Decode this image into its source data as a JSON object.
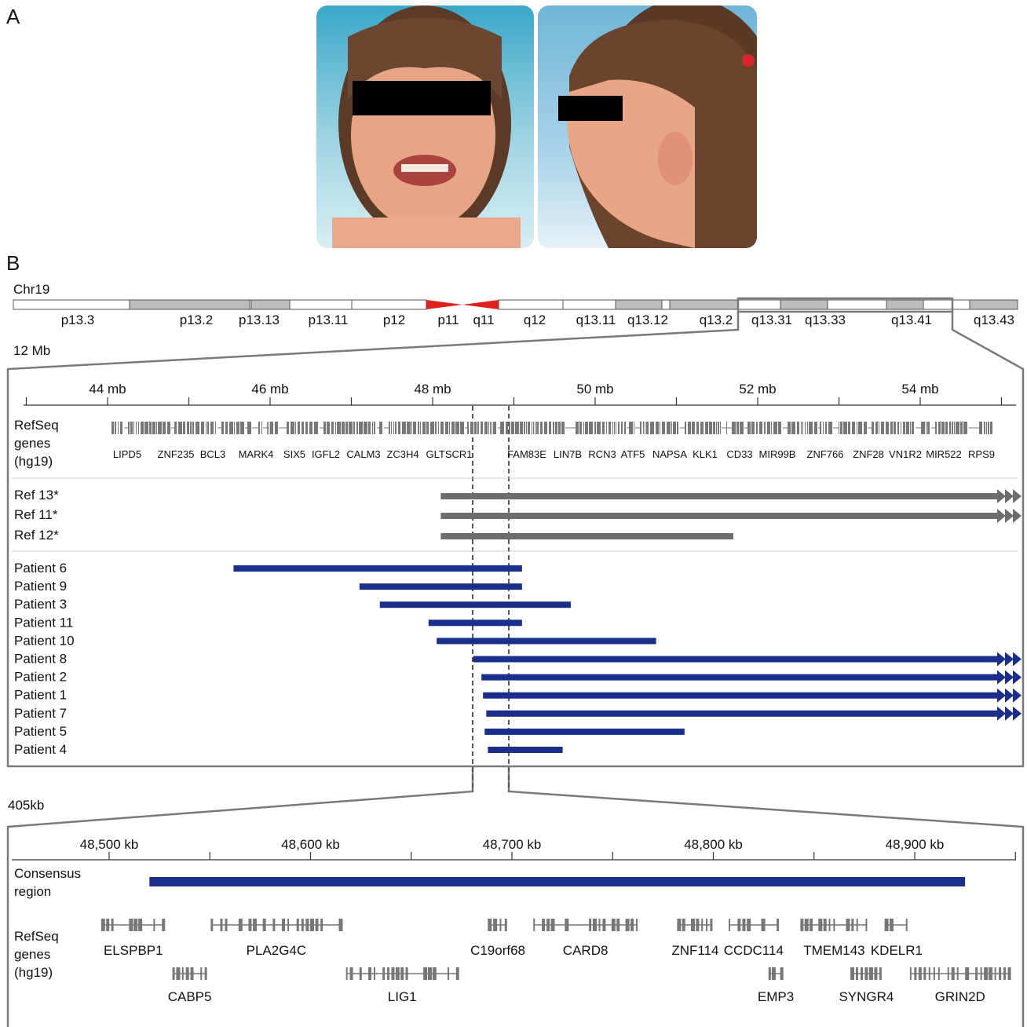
{
  "panel_a": {
    "label": "A"
  },
  "panel_b": {
    "label": "B"
  },
  "chromosome": {
    "name": "Chr19",
    "bands": [
      "p13.3",
      "p13.2",
      "p13.13",
      "p13.11",
      "p12",
      "p11",
      "q11",
      "q12",
      "q13.11",
      "q13.12",
      "q13.2",
      "q13.31",
      "q13.33",
      "q13.41",
      "q13.43"
    ]
  },
  "zoom1": {
    "size_label": "12 Mb",
    "axis_ticks": [
      "44 mb",
      "46 mb",
      "48 mb",
      "50 mb",
      "52 mb",
      "54 mb"
    ],
    "refseq_label": [
      "RefSeq",
      "genes",
      "(hg19)"
    ],
    "genes": [
      "LIPD5",
      "ZNF235",
      "BCL3",
      "MARK4",
      "SIX5",
      "IGFL2",
      "CALM3",
      "ZC3H4",
      "GLTSCR1",
      "FAM83E",
      "LIN7B",
      "RCN3",
      "ATF5",
      "NAPSA",
      "KLK1",
      "CD33",
      "MIR99B",
      "ZNF766",
      "ZNF28",
      "VN1R2",
      "MIR522",
      "RPS9"
    ],
    "refs": [
      {
        "label": "Ref 13*",
        "start": 48.1,
        "end": 55.5,
        "continues": true
      },
      {
        "label": "Ref 11*",
        "start": 48.1,
        "end": 55.5,
        "continues": true
      },
      {
        "label": "Ref 12*",
        "start": 48.1,
        "end": 51.7,
        "continues": false
      }
    ],
    "patients": [
      {
        "label": "Patient 6",
        "start": 45.55,
        "end": 49.1,
        "continues": false
      },
      {
        "label": "Patient 9",
        "start": 47.1,
        "end": 49.1,
        "continues": false
      },
      {
        "label": "Patient 3",
        "start": 47.35,
        "end": 49.7,
        "continues": false
      },
      {
        "label": "Patient 11",
        "start": 47.95,
        "end": 49.1,
        "continues": false
      },
      {
        "label": "Patient 10",
        "start": 48.05,
        "end": 50.75,
        "continues": false
      },
      {
        "label": "Patient 8",
        "start": 48.5,
        "end": 55.5,
        "continues": true
      },
      {
        "label": "Patient 2",
        "start": 48.6,
        "end": 55.5,
        "continues": true
      },
      {
        "label": "Patient 1",
        "start": 48.62,
        "end": 55.5,
        "continues": true
      },
      {
        "label": "Patient 7",
        "start": 48.66,
        "end": 55.5,
        "continues": true
      },
      {
        "label": "Patient 5",
        "start": 48.64,
        "end": 51.1,
        "continues": false
      },
      {
        "label": "Patient 4",
        "start": 48.68,
        "end": 49.6,
        "continues": false
      }
    ],
    "consensus_start": 48.52,
    "consensus_end": 48.92
  },
  "zoom2": {
    "size_label": "405kb",
    "axis_ticks": [
      "48,500 kb",
      "48,600 kb",
      "48,700 kb",
      "48,800 kb",
      "48,900 kb"
    ],
    "consensus_label": [
      "Consensus",
      "region"
    ],
    "consensus_start_kb": 48520,
    "consensus_end_kb": 48925,
    "refseq_label": [
      "RefSeq",
      "genes",
      "(hg19)"
    ],
    "genes_row1": [
      {
        "name": "ELSPBP1",
        "start": 48497,
        "end": 48527
      },
      {
        "name": "PLA2G4C",
        "start": 48551,
        "end": 48615
      },
      {
        "name": "C19orf68",
        "start": 48689,
        "end": 48697
      },
      {
        "name": "CARD8",
        "start": 48711,
        "end": 48762
      },
      {
        "name": "ZNF114",
        "start": 48783,
        "end": 48799
      },
      {
        "name": "CCDC114",
        "start": 48808,
        "end": 48832
      },
      {
        "name": "TMEM143",
        "start": 48844,
        "end": 48876
      },
      {
        "name": "KDELR1",
        "start": 48886,
        "end": 48896
      }
    ],
    "genes_row2": [
      {
        "name": "CABP5",
        "start": 48532,
        "end": 48548
      },
      {
        "name": "LIG1",
        "start": 48618,
        "end": 48673
      },
      {
        "name": "EMP3",
        "start": 48828,
        "end": 48834
      },
      {
        "name": "SYNGR4",
        "start": 48869,
        "end": 48883
      },
      {
        "name": "GRIN2D",
        "start": 48898,
        "end": 48947
      }
    ]
  },
  "colors": {
    "patient": "#1a2f8c",
    "reference": "#6d6d6d",
    "centromere": "#e0211b",
    "band_gray": "#bdbdbd",
    "gene": "#777777",
    "frame": "#7a7a7a"
  }
}
